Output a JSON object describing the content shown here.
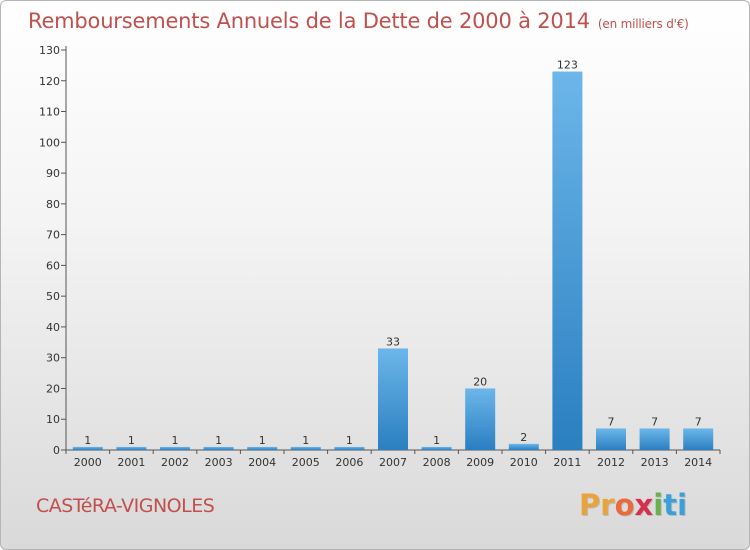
{
  "header": {
    "title": "Remboursements Annuels de la Dette de 2000 à 2014",
    "unit": "(en milliers d'€)"
  },
  "footer": {
    "city": "CASTéRA-VIGNOLES",
    "logo_letters": [
      "P",
      "r",
      "o",
      "x",
      "i",
      "t",
      "i"
    ],
    "logo_colors": [
      "#e8a33d",
      "#e8a33d",
      "#e86a3d",
      "#d6304f",
      "#6ab04c",
      "#3aa0d9",
      "#3aa0d9"
    ]
  },
  "chart_data": {
    "type": "bar",
    "categories": [
      "2000",
      "2001",
      "2002",
      "2003",
      "2004",
      "2005",
      "2006",
      "2007",
      "2008",
      "2009",
      "2010",
      "2011",
      "2012",
      "2013",
      "2014"
    ],
    "values": [
      1,
      1,
      1,
      1,
      1,
      1,
      1,
      33,
      1,
      20,
      2,
      123,
      7,
      7,
      7
    ],
    "title": "Remboursements Annuels de la Dette de 2000 à 2014",
    "subtitle": "(en milliers d'€)",
    "xlabel": "",
    "ylabel": "",
    "ylim": [
      0,
      130
    ],
    "yticks": [
      0,
      10,
      20,
      30,
      40,
      50,
      60,
      70,
      80,
      90,
      100,
      110,
      120,
      130
    ],
    "grid": false,
    "bar_color_light": "#6cb6ea",
    "bar_color_dark": "#2a7fc0"
  }
}
